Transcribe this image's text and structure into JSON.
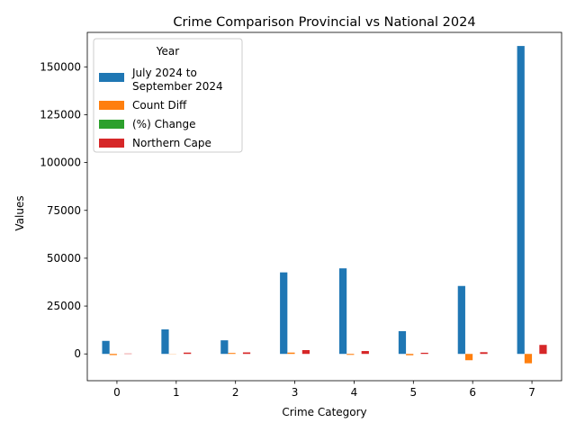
{
  "chart_data": {
    "type": "bar",
    "title": "Crime Comparison Provincial vs National 2024",
    "xlabel": "Crime Category",
    "ylabel": "Values",
    "categories": [
      "0",
      "1",
      "2",
      "3",
      "4",
      "5",
      "6",
      "7"
    ],
    "ylim": [
      -14000,
      168000
    ],
    "yticks": [
      0,
      25000,
      50000,
      75000,
      100000,
      125000,
      150000
    ],
    "ytick_labels": [
      "0",
      "25000",
      "50000",
      "75000",
      "100000",
      "125000",
      "150000"
    ],
    "legend": {
      "title": "Year",
      "placement": "top-left"
    },
    "series": [
      {
        "name": "July 2024 to \n September 2024",
        "color": "#1f77b4",
        "values": [
          6800,
          12800,
          7100,
          42600,
          44700,
          11900,
          35500,
          160900
        ]
      },
      {
        "name": "Count Diff",
        "color": "#ff7f0e",
        "values": [
          -600,
          100,
          500,
          700,
          -500,
          -700,
          -3300,
          -4900
        ]
      },
      {
        "name": "(%) Change",
        "color": "#2ca02c",
        "values": [
          -8,
          0.5,
          7,
          1.6,
          -1,
          -6,
          -8,
          -3
        ]
      },
      {
        "name": "Northern Cape",
        "color": "#d62728",
        "values": [
          200,
          700,
          800,
          2000,
          1500,
          600,
          900,
          4700
        ]
      }
    ]
  }
}
